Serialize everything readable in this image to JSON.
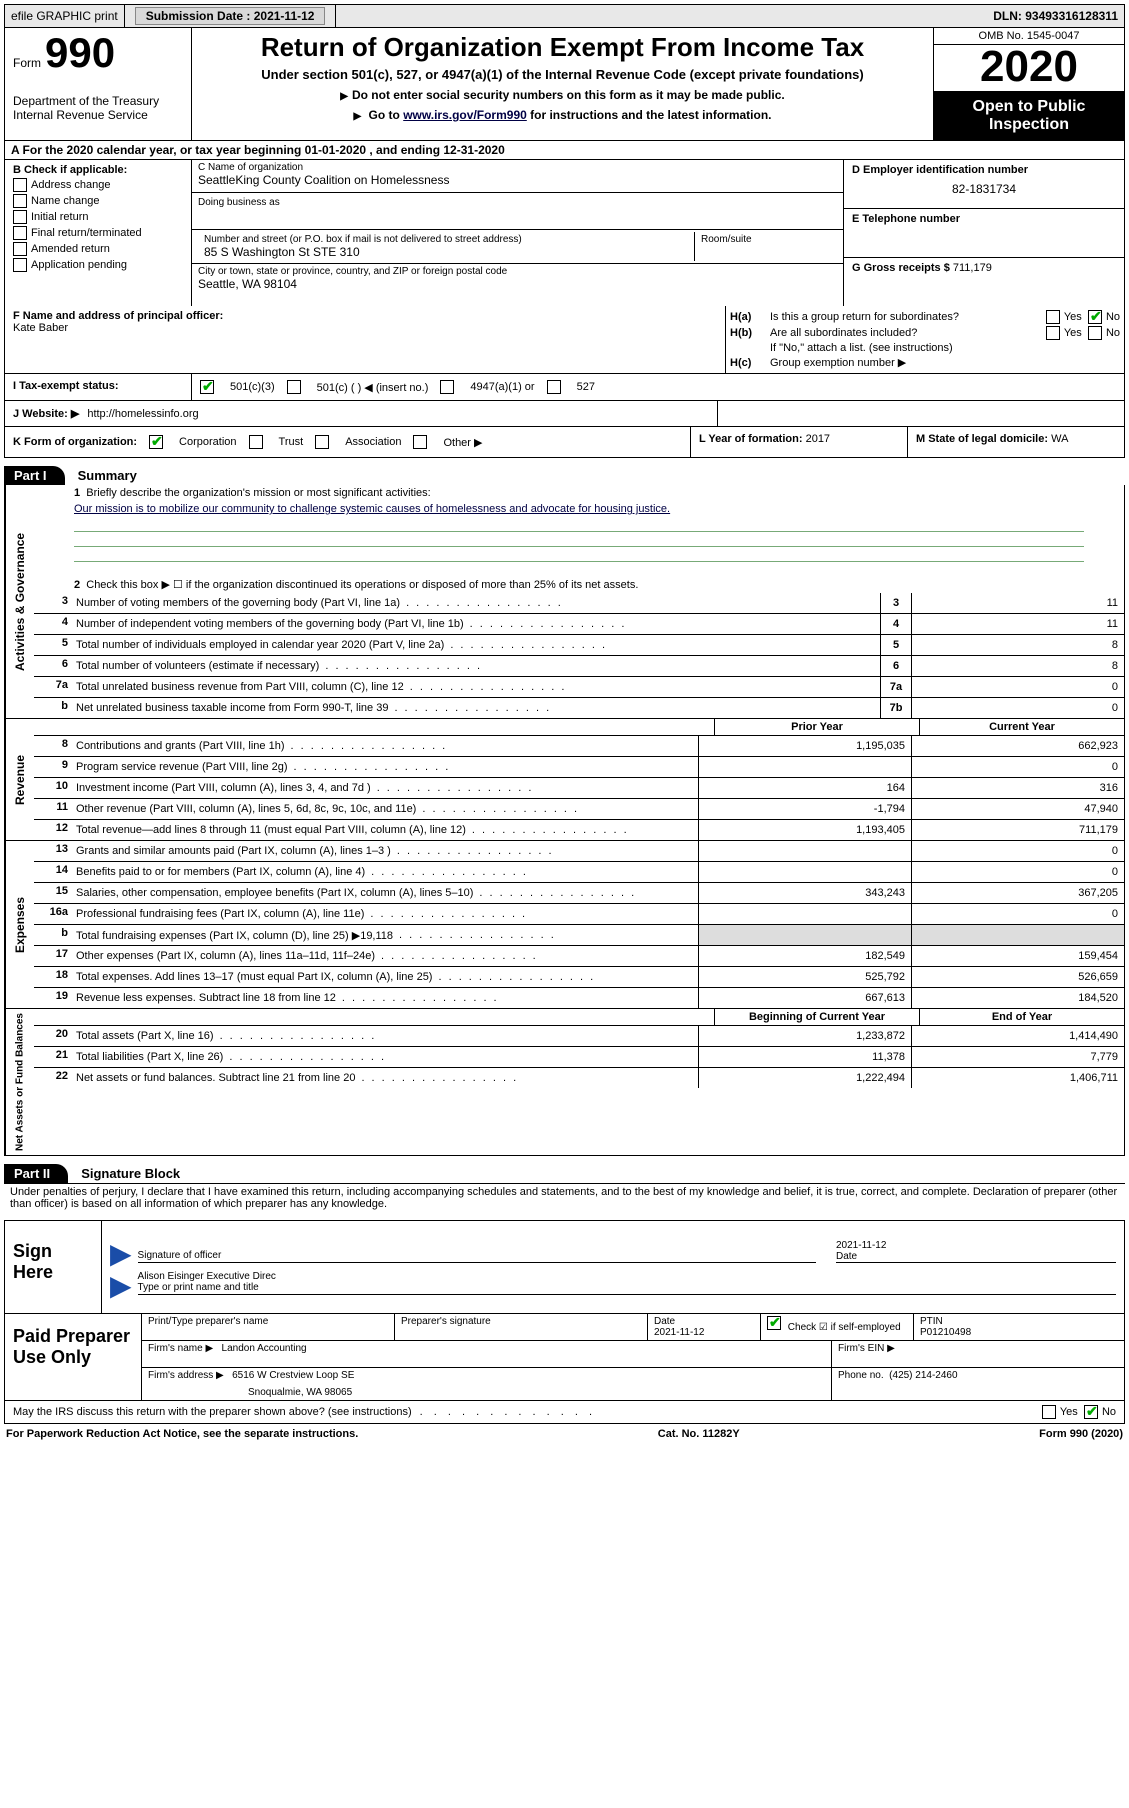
{
  "topbar": {
    "efile": "efile GRAPHIC print",
    "submission_label": "Submission Date :",
    "submission_date": "2021-11-12",
    "dln_label": "DLN:",
    "dln": "93493316128311"
  },
  "header": {
    "form_word": "Form",
    "form_num": "990",
    "dept": "Department of the Treasury",
    "irs": "Internal Revenue Service",
    "title": "Return of Organization Exempt From Income Tax",
    "sub1": "Under section 501(c), 527, or 4947(a)(1) of the Internal Revenue Code (except private foundations)",
    "sub2": "Do not enter social security numbers on this form as it may be made public.",
    "sub3_pre": "Go to ",
    "sub3_link": "www.irs.gov/Form990",
    "sub3_post": " for instructions and the latest information.",
    "omb": "OMB No. 1545-0047",
    "year": "2020",
    "open1": "Open to Public",
    "open2": "Inspection"
  },
  "rowA": "A  For the 2020 calendar year, or tax year beginning 01-01-2020    , and ending 12-31-2020",
  "colB": {
    "label": "B Check if applicable:",
    "opts": [
      "Address change",
      "Name change",
      "Initial return",
      "Final return/terminated",
      "Amended return",
      "Application pending"
    ]
  },
  "colC": {
    "name_label": "C Name of organization",
    "name": "SeattleKing County Coalition on Homelessness",
    "dba_label": "Doing business as",
    "addr_label": "Number and street (or P.O. box if mail is not delivered to street address)",
    "room_label": "Room/suite",
    "addr": "85 S Washington St STE 310",
    "city_label": "City or town, state or province, country, and ZIP or foreign postal code",
    "city": "Seattle, WA  98104"
  },
  "colD": {
    "ein_label": "D Employer identification number",
    "ein": "82-1831734",
    "phone_label": "E Telephone number",
    "gross_label": "G Gross receipts $",
    "gross": "711,179"
  },
  "rowF": {
    "label": "F  Name and address of principal officer:",
    "name": "Kate Baber"
  },
  "rowH": {
    "ha_label": "H(a)",
    "ha_text": "Is this a group return for subordinates?",
    "hb_label": "H(b)",
    "hb_text": "Are all subordinates included?",
    "hb_note": "If \"No,\" attach a list. (see instructions)",
    "hc_label": "H(c)",
    "hc_text": "Group exemption number ▶",
    "yes": "Yes",
    "no": "No"
  },
  "taxrow": {
    "label": "I   Tax-exempt status:",
    "opt1": "501(c)(3)",
    "opt2": "501(c) (   ) ◀ (insert no.)",
    "opt3": "4947(a)(1) or",
    "opt4": "527"
  },
  "rowJ": {
    "label": "J   Website: ▶",
    "val": "http://homelessinfo.org"
  },
  "rowK": {
    "label": "K Form of organization:",
    "opt1": "Corporation",
    "opt2": "Trust",
    "opt3": "Association",
    "opt4": "Other ▶"
  },
  "rowL": {
    "label": "L Year of formation:",
    "val": "2017"
  },
  "rowM": {
    "label": "M State of legal domicile:",
    "val": "WA"
  },
  "part1_label": "Part I",
  "part1_title": "Summary",
  "side_ag": "Activities & Governance",
  "side_rev": "Revenue",
  "side_exp": "Expenses",
  "side_na": "Net Assets or Fund Balances",
  "line1": {
    "num": "1",
    "text": "Briefly describe the organization's mission or most significant activities:",
    "mission": "Our mission is to mobilize our community to challenge systemic causes of homelessness and advocate for housing justice."
  },
  "line2": {
    "num": "2",
    "text": "Check this box ▶ ☐  if the organization discontinued its operations or disposed of more than 25% of its net assets."
  },
  "lines37": [
    {
      "n": "3",
      "txt": "Number of voting members of the governing body (Part VI, line 1a)",
      "ref": "3",
      "val": "11"
    },
    {
      "n": "4",
      "txt": "Number of independent voting members of the governing body (Part VI, line 1b)",
      "ref": "4",
      "val": "11"
    },
    {
      "n": "5",
      "txt": "Total number of individuals employed in calendar year 2020 (Part V, line 2a)",
      "ref": "5",
      "val": "8"
    },
    {
      "n": "6",
      "txt": "Total number of volunteers (estimate if necessary)",
      "ref": "6",
      "val": "8"
    },
    {
      "n": "7a",
      "txt": "Total unrelated business revenue from Part VIII, column (C), line 12",
      "ref": "7a",
      "val": "0"
    },
    {
      "n": "b",
      "txt": "Net unrelated business taxable income from Form 990-T, line 39",
      "ref": "7b",
      "val": "0"
    }
  ],
  "colhdr": {
    "prior": "Prior Year",
    "current": "Current Year",
    "boy": "Beginning of Current Year",
    "eoy": "End of Year"
  },
  "revenue": [
    {
      "n": "8",
      "txt": "Contributions and grants (Part VIII, line 1h)",
      "c1": "1,195,035",
      "c2": "662,923"
    },
    {
      "n": "9",
      "txt": "Program service revenue (Part VIII, line 2g)",
      "c1": "",
      "c2": "0"
    },
    {
      "n": "10",
      "txt": "Investment income (Part VIII, column (A), lines 3, 4, and 7d )",
      "c1": "164",
      "c2": "316"
    },
    {
      "n": "11",
      "txt": "Other revenue (Part VIII, column (A), lines 5, 6d, 8c, 9c, 10c, and 11e)",
      "c1": "-1,794",
      "c2": "47,940"
    },
    {
      "n": "12",
      "txt": "Total revenue—add lines 8 through 11 (must equal Part VIII, column (A), line 12)",
      "c1": "1,193,405",
      "c2": "711,179"
    }
  ],
  "expenses": [
    {
      "n": "13",
      "txt": "Grants and similar amounts paid (Part IX, column (A), lines 1–3 )",
      "c1": "",
      "c2": "0"
    },
    {
      "n": "14",
      "txt": "Benefits paid to or for members (Part IX, column (A), line 4)",
      "c1": "",
      "c2": "0"
    },
    {
      "n": "15",
      "txt": "Salaries, other compensation, employee benefits (Part IX, column (A), lines 5–10)",
      "c1": "343,243",
      "c2": "367,205"
    },
    {
      "n": "16a",
      "txt": "Professional fundraising fees (Part IX, column (A), line 11e)",
      "c1": "",
      "c2": "0"
    },
    {
      "n": "b",
      "txt": "Total fundraising expenses (Part IX, column (D), line 25) ▶19,118",
      "c1": "blank",
      "c2": "blank"
    },
    {
      "n": "17",
      "txt": "Other expenses (Part IX, column (A), lines 11a–11d, 11f–24e)",
      "c1": "182,549",
      "c2": "159,454"
    },
    {
      "n": "18",
      "txt": "Total expenses. Add lines 13–17 (must equal Part IX, column (A), line 25)",
      "c1": "525,792",
      "c2": "526,659"
    },
    {
      "n": "19",
      "txt": "Revenue less expenses. Subtract line 18 from line 12",
      "c1": "667,613",
      "c2": "184,520"
    }
  ],
  "netassets": [
    {
      "n": "20",
      "txt": "Total assets (Part X, line 16)",
      "c1": "1,233,872",
      "c2": "1,414,490"
    },
    {
      "n": "21",
      "txt": "Total liabilities (Part X, line 26)",
      "c1": "11,378",
      "c2": "7,779"
    },
    {
      "n": "22",
      "txt": "Net assets or fund balances. Subtract line 21 from line 20",
      "c1": "1,222,494",
      "c2": "1,406,711"
    }
  ],
  "part2_label": "Part II",
  "part2_title": "Signature Block",
  "part2_text": "Under penalties of perjury, I declare that I have examined this return, including accompanying schedules and statements, and to the best of my knowledge and belief, it is true, correct, and complete. Declaration of preparer (other than officer) is based on all information of which preparer has any knowledge.",
  "sign": {
    "label": "Sign Here",
    "sig_label": "Signature of officer",
    "date_label": "Date",
    "date_val": "2021-11-12",
    "name": "Alison Eisinger  Executive Direc",
    "name_label": "Type or print name and title"
  },
  "preparer": {
    "label": "Paid Preparer Use Only",
    "print_label": "Print/Type preparer's name",
    "sig_label": "Preparer's signature",
    "date_label": "Date",
    "date_val": "2021-11-12",
    "check_label": "Check ☑ if self-employed",
    "ptin_label": "PTIN",
    "ptin": "P01210498",
    "firm_name_label": "Firm's name   ▶",
    "firm_name": "Landon Accounting",
    "firm_ein_label": "Firm's EIN ▶",
    "firm_addr_label": "Firm's address ▶",
    "firm_addr1": "6516 W Crestview Loop SE",
    "firm_addr2": "Snoqualmie, WA  98065",
    "phone_label": "Phone no.",
    "phone": "(425) 214-2460"
  },
  "irs_discuss": {
    "text": "May the IRS discuss this return with the preparer shown above? (see instructions)",
    "yes": "Yes",
    "no": "No"
  },
  "footer": {
    "left": "For Paperwork Reduction Act Notice, see the separate instructions.",
    "mid": "Cat. No. 11282Y",
    "right": "Form 990 (2020)"
  }
}
